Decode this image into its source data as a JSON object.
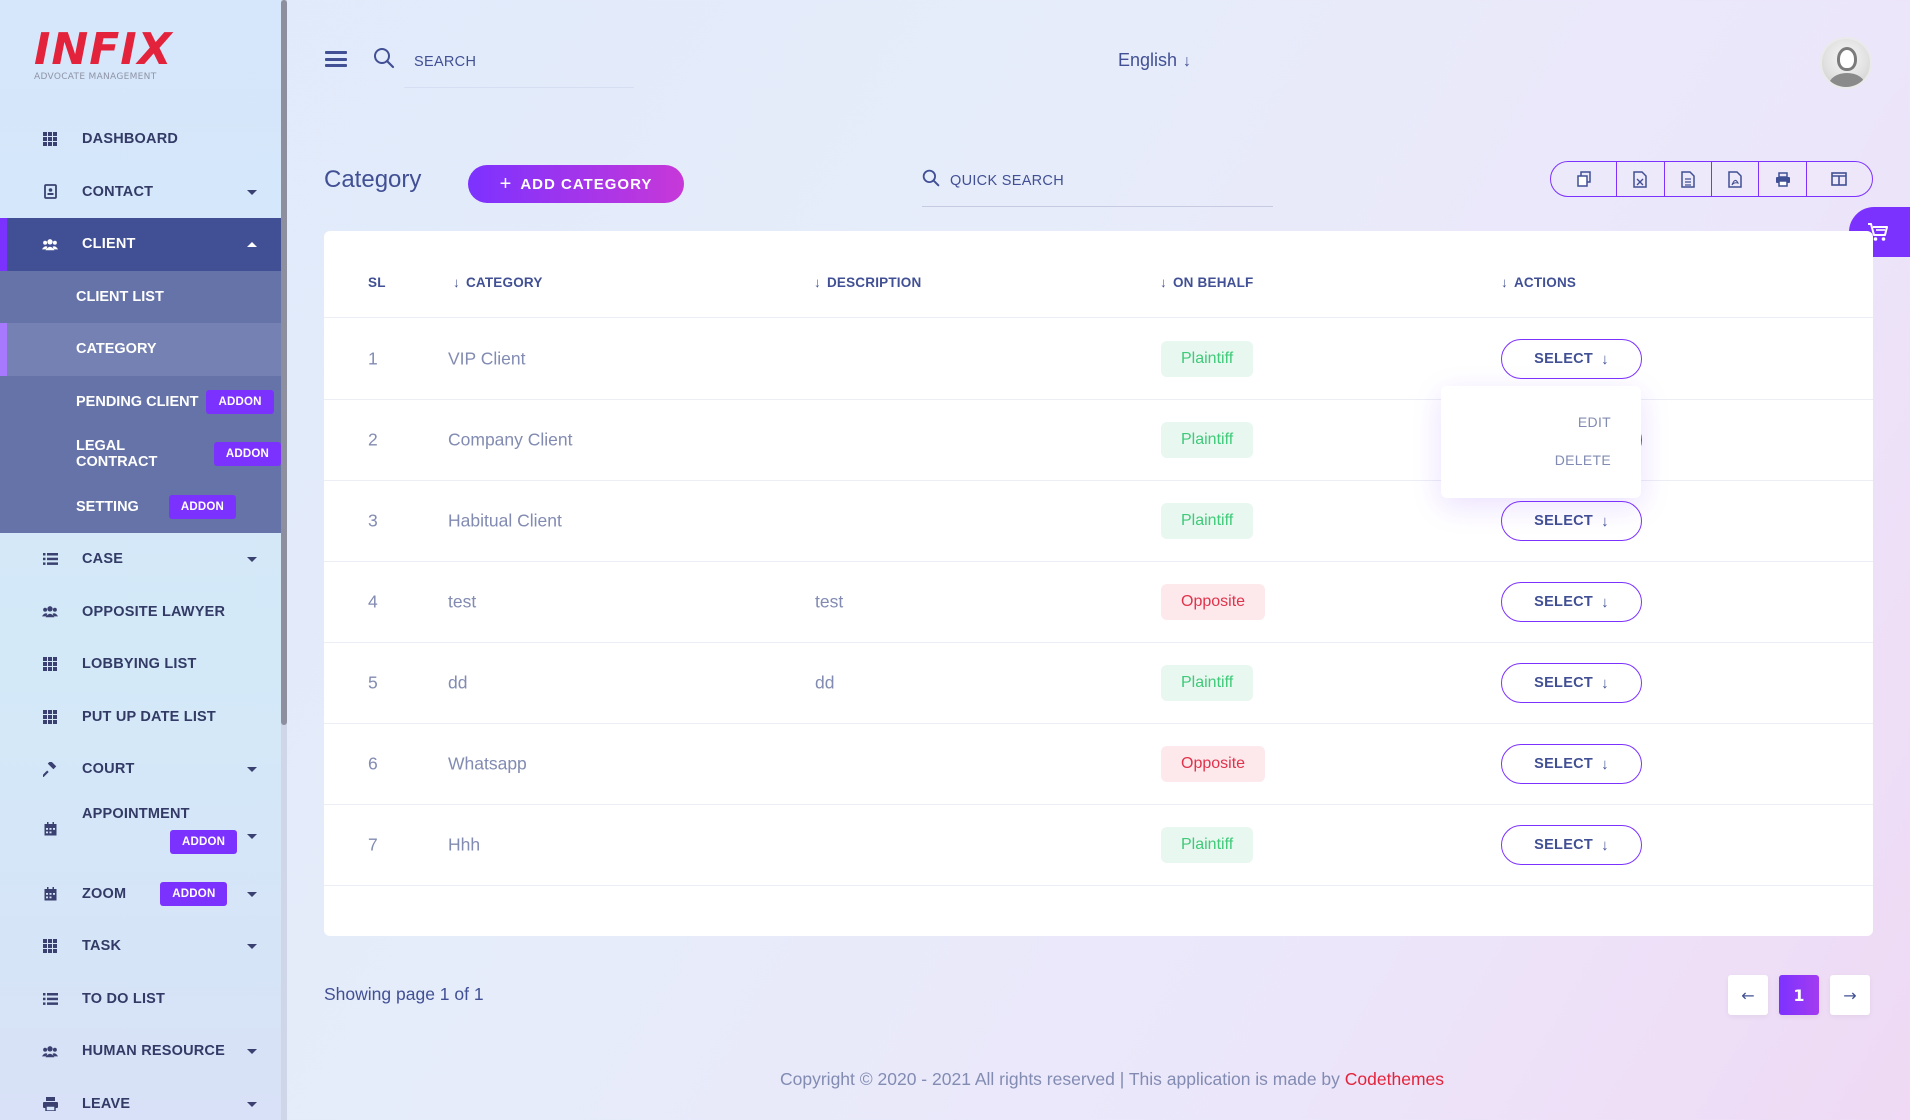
{
  "brand": {
    "logo": "INFIX",
    "tagline": "ADVOCATE MANAGEMENT"
  },
  "sidebar": {
    "items": [
      {
        "label": "DASHBOARD",
        "icon": "grid-icon"
      },
      {
        "label": "CONTACT",
        "icon": "contact-card-icon"
      },
      {
        "label": "CLIENT",
        "icon": "users-icon"
      },
      {
        "label": "CASE",
        "icon": "list-icon"
      },
      {
        "label": "OPPOSITE LAWYER",
        "icon": "users-icon"
      },
      {
        "label": "LOBBYING LIST",
        "icon": "grid-icon"
      },
      {
        "label": "PUT UP DATE LIST",
        "icon": "grid-icon"
      },
      {
        "label": "COURT",
        "icon": "gavel-icon"
      },
      {
        "label": "APPOINTMENT",
        "icon": "calendar-icon"
      },
      {
        "label": "ZOOM",
        "icon": "calendar-icon"
      },
      {
        "label": "TASK",
        "icon": "grid-icon"
      },
      {
        "label": "TO DO LIST",
        "icon": "list-icon"
      },
      {
        "label": "HUMAN RESOURCE",
        "icon": "users-icon"
      },
      {
        "label": "LEAVE",
        "icon": "print-icon"
      }
    ],
    "client_submenu": [
      {
        "label": "CLIENT LIST"
      },
      {
        "label": "CATEGORY"
      },
      {
        "label": "PENDING CLIENT"
      },
      {
        "label": "LEGAL CONTRACT"
      },
      {
        "label": "SETTING"
      }
    ],
    "addon_label": "ADDON"
  },
  "header": {
    "search_placeholder": "SEARCH",
    "language": "English"
  },
  "page": {
    "title": "Category",
    "add_button": "ADD CATEGORY",
    "quick_search_placeholder": "QUICK SEARCH",
    "toolbar_icons": [
      "copy-icon",
      "excel-icon",
      "csv-icon",
      "pdf-icon",
      "print-icon",
      "columns-icon"
    ]
  },
  "table": {
    "headers": {
      "sl": "SL",
      "category": "CATEGORY",
      "description": "DESCRIPTION",
      "on_behalf": "ON BEHALF",
      "actions": "ACTIONS"
    },
    "rows": [
      {
        "sl": "1",
        "category": "VIP Client",
        "description": "",
        "on_behalf": "Plaintiff"
      },
      {
        "sl": "2",
        "category": "Company Client",
        "description": "",
        "on_behalf": "Plaintiff"
      },
      {
        "sl": "3",
        "category": "Habitual Client",
        "description": "",
        "on_behalf": "Plaintiff"
      },
      {
        "sl": "4",
        "category": "test",
        "description": "test",
        "on_behalf": "Opposite"
      },
      {
        "sl": "5",
        "category": "dd",
        "description": "dd",
        "on_behalf": "Plaintiff"
      },
      {
        "sl": "6",
        "category": "Whatsapp",
        "description": "",
        "on_behalf": "Opposite"
      },
      {
        "sl": "7",
        "category": "Hhh",
        "description": "",
        "on_behalf": "Plaintiff"
      }
    ],
    "select_label": "SELECT",
    "dropdown": {
      "edit": "EDIT",
      "delete": "DELETE"
    }
  },
  "pagination": {
    "showing": "Showing page 1 of 1",
    "current": "1",
    "prev": "←",
    "next": "→"
  },
  "footer": {
    "copyright": "Copyright © 2020 - 2021 All rights reserved | This application is made by ",
    "brand": "Codethemes"
  }
}
